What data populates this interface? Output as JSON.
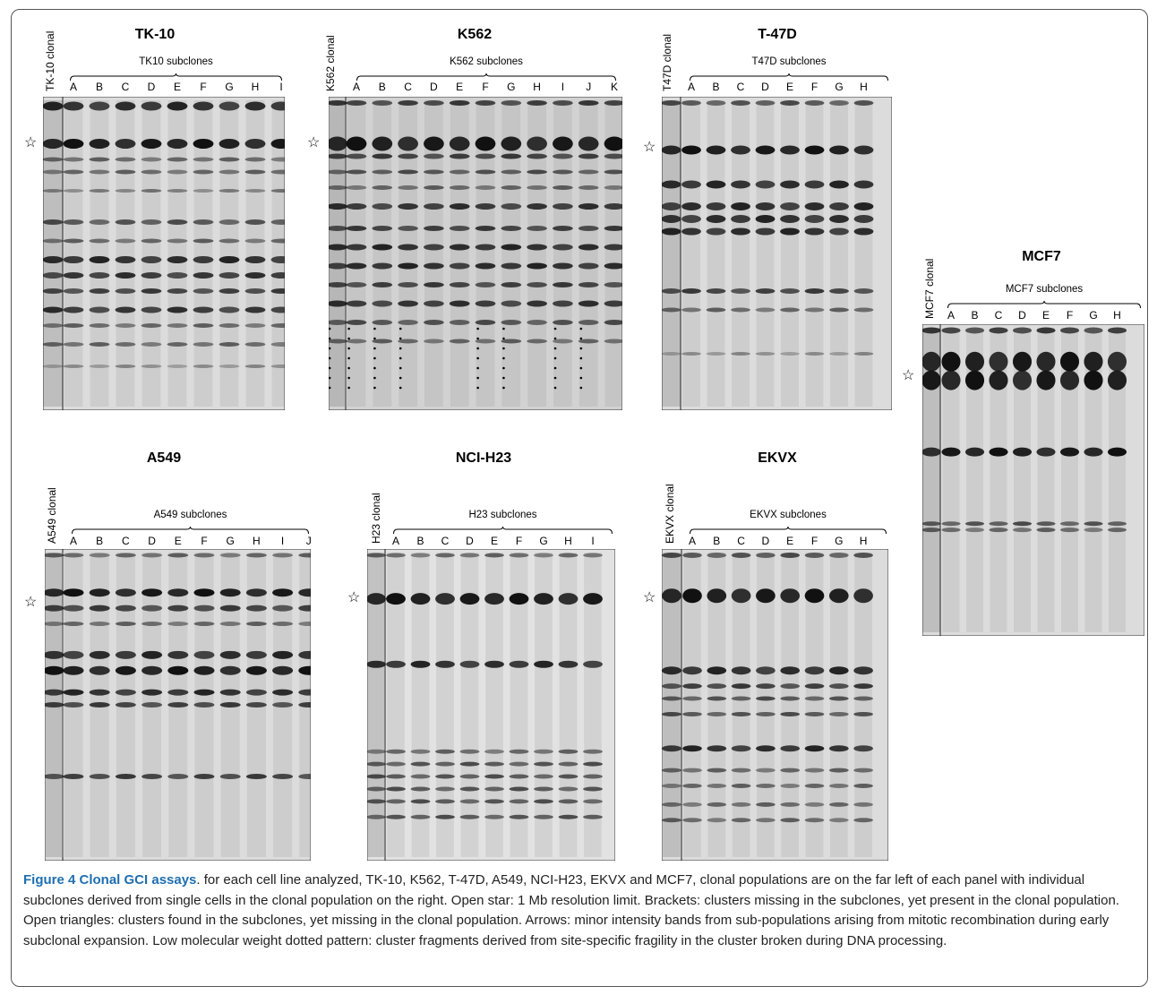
{
  "panels": [
    {
      "id": "tk10",
      "title": "TK-10",
      "clonal_label": "TK-10 clonal",
      "sub_label": "TK10 subclones",
      "lanes": [
        "A",
        "B",
        "C",
        "D",
        "E",
        "F",
        "G",
        "H",
        "I"
      ]
    },
    {
      "id": "k562",
      "title": "K562",
      "clonal_label": "K562 clonal",
      "sub_label": "K562 subclones",
      "lanes": [
        "A",
        "B",
        "C",
        "D",
        "E",
        "F",
        "G",
        "H",
        "I",
        "J",
        "K"
      ]
    },
    {
      "id": "t47d",
      "title": "T-47D",
      "clonal_label": "T47D clonal",
      "sub_label": "T47D subclones",
      "lanes": [
        "A",
        "B",
        "C",
        "D",
        "E",
        "F",
        "G",
        "H"
      ]
    },
    {
      "id": "mcf7",
      "title": "MCF7",
      "clonal_label": "MCF7 clonal",
      "sub_label": "MCF7 subclones",
      "lanes": [
        "A",
        "B",
        "C",
        "D",
        "E",
        "F",
        "G",
        "H"
      ]
    },
    {
      "id": "a549",
      "title": "A549",
      "clonal_label": "A549 clonal",
      "sub_label": "A549 subclones",
      "lanes": [
        "A",
        "B",
        "C",
        "D",
        "E",
        "F",
        "G",
        "H",
        "I",
        "J"
      ]
    },
    {
      "id": "h23",
      "title": "NCI-H23",
      "clonal_label": "H23 clonal",
      "sub_label": "H23 subclones",
      "lanes": [
        "A",
        "B",
        "C",
        "D",
        "E",
        "F",
        "G",
        "H",
        "I"
      ]
    },
    {
      "id": "ekvx",
      "title": "EKVX",
      "clonal_label": "EKVX clonal",
      "sub_label": "EKVX subclones",
      "lanes": [
        "A",
        "B",
        "C",
        "D",
        "E",
        "F",
        "G",
        "H"
      ]
    }
  ],
  "star_symbol": "☆",
  "caption": {
    "title": "Figure 4 Clonal GCI assays",
    "text": ". for each cell line analyzed, TK-10, K562, T-47D, A549, NCI-H23, EKVX and MCF7, clonal populations are on the far left of each panel with individual subclones derived from single cells in the clonal population on the right. Open star: 1 Mb resolution limit. Brackets: clusters missing in the subclones, yet present in the clonal population. Open triangles: clusters found in the subclones, yet missing in the clonal population. Arrows: minor intensity bands from sub-populations arising from mitotic recombination during early subclonal expansion. Low molecular weight dotted pattern: cluster fragments derived from site-specific fragility in the cluster broken during DNA processing."
  },
  "colors": {
    "caption_title": "#1f6fb0",
    "gel_bg": "#d8d8d8",
    "band": "#111111"
  }
}
